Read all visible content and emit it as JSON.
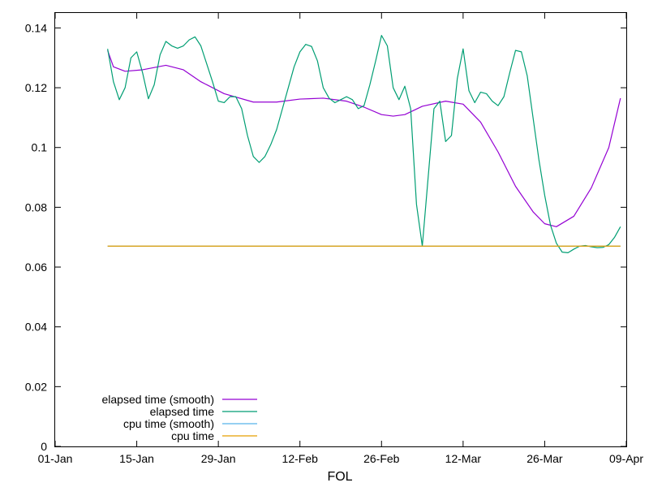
{
  "chart_data": {
    "type": "line",
    "title": "",
    "xlabel": "FOL",
    "ylabel": "",
    "x_axis_type": "date",
    "xlim": [
      "2018-01-01",
      "2018-04-09"
    ],
    "ylim": [
      0,
      0.145
    ],
    "x_ticks": [
      {
        "date": "2018-01-01",
        "label": "01-Jan"
      },
      {
        "date": "2018-01-15",
        "label": "15-Jan"
      },
      {
        "date": "2018-01-29",
        "label": "29-Jan"
      },
      {
        "date": "2018-02-12",
        "label": "12-Feb"
      },
      {
        "date": "2018-02-26",
        "label": "26-Feb"
      },
      {
        "date": "2018-03-12",
        "label": "12-Mar"
      },
      {
        "date": "2018-03-26",
        "label": "26-Mar"
      },
      {
        "date": "2018-04-09",
        "label": "09-Apr"
      }
    ],
    "y_ticks": [
      {
        "value": 0,
        "label": "0"
      },
      {
        "value": 0.02,
        "label": "0.02"
      },
      {
        "value": 0.04,
        "label": "0.04"
      },
      {
        "value": 0.06,
        "label": "0.06"
      },
      {
        "value": 0.08,
        "label": "0.08"
      },
      {
        "value": 0.1,
        "label": "0.1"
      },
      {
        "value": 0.12,
        "label": "0.12"
      },
      {
        "value": 0.14,
        "label": "0.14"
      }
    ],
    "grid": false,
    "legend_position": "bottom-left",
    "series": [
      {
        "name": "elapsed time (smooth)",
        "color": "#9400d3",
        "points": [
          [
            "2018-01-10",
            0.1325
          ],
          [
            "2018-01-11",
            0.127
          ],
          [
            "2018-01-13",
            0.1255
          ],
          [
            "2018-01-16",
            0.126
          ],
          [
            "2018-01-20",
            0.1275
          ],
          [
            "2018-01-23",
            0.126
          ],
          [
            "2018-01-26",
            0.122
          ],
          [
            "2018-01-30",
            0.118
          ],
          [
            "2018-02-04",
            0.1152
          ],
          [
            "2018-02-08",
            0.1152
          ],
          [
            "2018-02-12",
            0.1162
          ],
          [
            "2018-02-16",
            0.1165
          ],
          [
            "2018-02-20",
            0.1155
          ],
          [
            "2018-02-23",
            0.1135
          ],
          [
            "2018-02-26",
            0.111
          ],
          [
            "2018-02-28",
            0.1105
          ],
          [
            "2018-03-02",
            0.111
          ],
          [
            "2018-03-05",
            0.1138
          ],
          [
            "2018-03-09",
            0.1155
          ],
          [
            "2018-03-12",
            0.1145
          ],
          [
            "2018-03-15",
            0.1085
          ],
          [
            "2018-03-18",
            0.0985
          ],
          [
            "2018-03-21",
            0.087
          ],
          [
            "2018-03-24",
            0.0785
          ],
          [
            "2018-03-26",
            0.0745
          ],
          [
            "2018-03-28",
            0.0735
          ],
          [
            "2018-03-31",
            0.077
          ],
          [
            "2018-04-03",
            0.0865
          ],
          [
            "2018-04-06",
            0.1
          ],
          [
            "2018-04-08",
            0.1165
          ]
        ]
      },
      {
        "name": "elapsed time",
        "color": "#009e73",
        "points": [
          [
            "2018-01-10",
            0.133
          ],
          [
            "2018-01-11",
            0.122
          ],
          [
            "2018-01-12",
            0.116
          ],
          [
            "2018-01-13",
            0.12
          ],
          [
            "2018-01-14",
            0.13
          ],
          [
            "2018-01-15",
            0.132
          ],
          [
            "2018-01-16",
            0.125
          ],
          [
            "2018-01-17",
            0.1163
          ],
          [
            "2018-01-18",
            0.121
          ],
          [
            "2018-01-19",
            0.131
          ],
          [
            "2018-01-20",
            0.1355
          ],
          [
            "2018-01-21",
            0.134
          ],
          [
            "2018-01-22",
            0.1332
          ],
          [
            "2018-01-23",
            0.134
          ],
          [
            "2018-01-24",
            0.136
          ],
          [
            "2018-01-25",
            0.137
          ],
          [
            "2018-01-26",
            0.134
          ],
          [
            "2018-01-27",
            0.128
          ],
          [
            "2018-01-28",
            0.122
          ],
          [
            "2018-01-29",
            0.1155
          ],
          [
            "2018-01-30",
            0.115
          ],
          [
            "2018-01-31",
            0.117
          ],
          [
            "2018-02-01",
            0.117
          ],
          [
            "2018-02-02",
            0.113
          ],
          [
            "2018-02-03",
            0.104
          ],
          [
            "2018-02-04",
            0.097
          ],
          [
            "2018-02-05",
            0.095
          ],
          [
            "2018-02-06",
            0.097
          ],
          [
            "2018-02-07",
            0.101
          ],
          [
            "2018-02-08",
            0.106
          ],
          [
            "2018-02-09",
            0.113
          ],
          [
            "2018-02-10",
            0.12
          ],
          [
            "2018-02-11",
            0.127
          ],
          [
            "2018-02-12",
            0.132
          ],
          [
            "2018-02-13",
            0.1345
          ],
          [
            "2018-02-14",
            0.1338
          ],
          [
            "2018-02-15",
            0.129
          ],
          [
            "2018-02-16",
            0.12
          ],
          [
            "2018-02-17",
            0.1165
          ],
          [
            "2018-02-18",
            0.115
          ],
          [
            "2018-02-19",
            0.116
          ],
          [
            "2018-02-20",
            0.117
          ],
          [
            "2018-02-21",
            0.116
          ],
          [
            "2018-02-22",
            0.113
          ],
          [
            "2018-02-23",
            0.114
          ],
          [
            "2018-02-24",
            0.121
          ],
          [
            "2018-02-25",
            0.129
          ],
          [
            "2018-02-26",
            0.1375
          ],
          [
            "2018-02-27",
            0.134
          ],
          [
            "2018-02-28",
            0.12
          ],
          [
            "2018-03-01",
            0.116
          ],
          [
            "2018-03-02",
            0.1205
          ],
          [
            "2018-03-03",
            0.113
          ],
          [
            "2018-03-04",
            0.081
          ],
          [
            "2018-03-05",
            0.067
          ],
          [
            "2018-03-06",
            0.09
          ],
          [
            "2018-03-07",
            0.113
          ],
          [
            "2018-03-08",
            0.1155
          ],
          [
            "2018-03-09",
            0.102
          ],
          [
            "2018-03-10",
            0.104
          ],
          [
            "2018-03-11",
            0.123
          ],
          [
            "2018-03-12",
            0.133
          ],
          [
            "2018-03-13",
            0.119
          ],
          [
            "2018-03-14",
            0.115
          ],
          [
            "2018-03-15",
            0.1185
          ],
          [
            "2018-03-16",
            0.118
          ],
          [
            "2018-03-17",
            0.1155
          ],
          [
            "2018-03-18",
            0.114
          ],
          [
            "2018-03-19",
            0.117
          ],
          [
            "2018-03-20",
            0.125
          ],
          [
            "2018-03-21",
            0.1325
          ],
          [
            "2018-03-22",
            0.132
          ],
          [
            "2018-03-23",
            0.124
          ],
          [
            "2018-03-24",
            0.11
          ],
          [
            "2018-03-25",
            0.096
          ],
          [
            "2018-03-26",
            0.084
          ],
          [
            "2018-03-27",
            0.074
          ],
          [
            "2018-03-28",
            0.068
          ],
          [
            "2018-03-29",
            0.065
          ],
          [
            "2018-03-30",
            0.0648
          ],
          [
            "2018-03-31",
            0.066
          ],
          [
            "2018-04-01",
            0.067
          ],
          [
            "2018-04-02",
            0.0672
          ],
          [
            "2018-04-03",
            0.0668
          ],
          [
            "2018-04-04",
            0.0665
          ],
          [
            "2018-04-05",
            0.0666
          ],
          [
            "2018-04-06",
            0.0675
          ],
          [
            "2018-04-07",
            0.07
          ],
          [
            "2018-04-08",
            0.0735
          ]
        ]
      },
      {
        "name": "cpu time (smooth)",
        "color": "#56b4e9",
        "points": [
          [
            "2018-01-10",
            0.067
          ],
          [
            "2018-04-08",
            0.067
          ]
        ]
      },
      {
        "name": "cpu time",
        "color": "#e69f00",
        "points": [
          [
            "2018-01-10",
            0.067
          ],
          [
            "2018-04-08",
            0.067
          ]
        ]
      }
    ]
  }
}
